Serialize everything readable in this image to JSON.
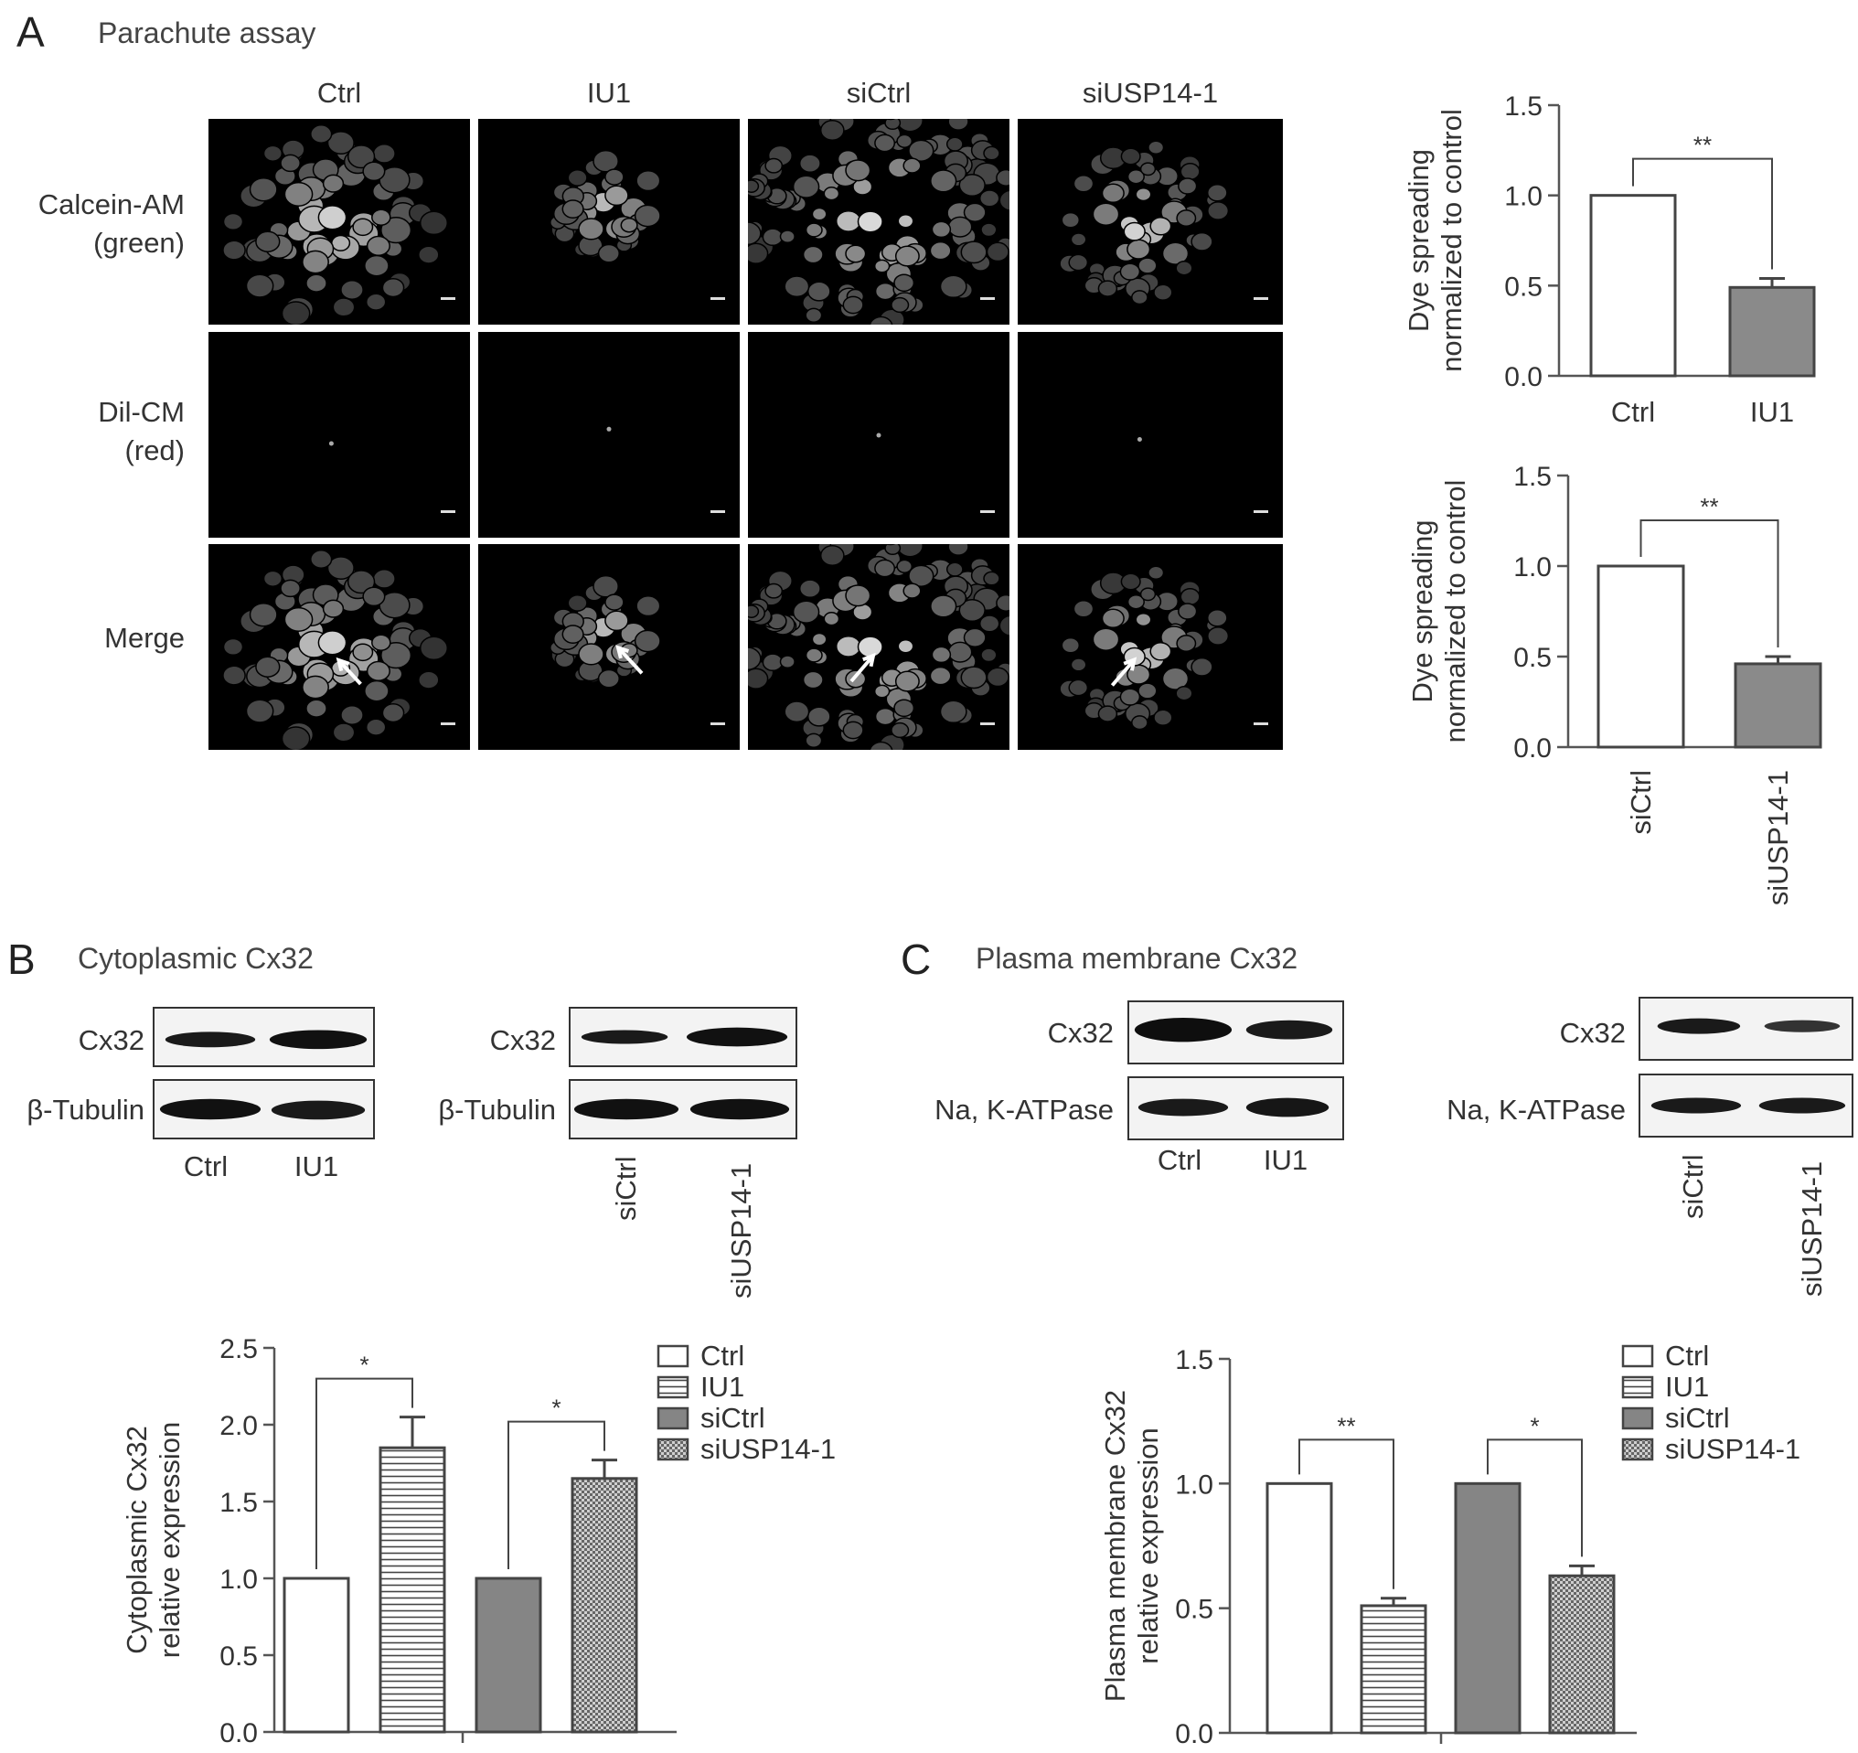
{
  "panelA": {
    "letter": "A",
    "title": "Parachute assay",
    "columns": [
      "Ctrl",
      "IU1",
      "siCtrl",
      "siUSP14-1"
    ],
    "rows": [
      {
        "line1": "Calcein-AM",
        "line2": "(green)"
      },
      {
        "line1": "Dil-CM",
        "line2": "(red)"
      },
      {
        "line1": "Merge",
        "line2": ""
      }
    ]
  },
  "panelB": {
    "letter": "B",
    "title": "Cytoplasmic Cx32",
    "blot1": {
      "bands": [
        "Cx32",
        "β-Tubulin"
      ],
      "lanes": [
        "Ctrl",
        "IU1"
      ]
    },
    "blot2": {
      "bands": [
        "Cx32",
        "β-Tubulin"
      ],
      "lanes": [
        "siCtrl",
        "siUSP14-1"
      ]
    }
  },
  "panelC": {
    "letter": "C",
    "title": "Plasma membrane Cx32",
    "blot1": {
      "bands": [
        "Cx32",
        "Na, K-ATPase"
      ],
      "lanes": [
        "Ctrl",
        "IU1"
      ]
    },
    "blot2": {
      "bands": [
        "Cx32",
        "Na, K-ATPase"
      ],
      "lanes": [
        "siCtrl",
        "siUSP14-1"
      ]
    }
  },
  "chart_data": [
    {
      "id": "A-top",
      "type": "bar",
      "categories": [
        "Ctrl",
        "IU1"
      ],
      "values": [
        1.0,
        0.49
      ],
      "errors": [
        0,
        0.05
      ],
      "fills": [
        "#ffffff",
        "#8a8a8a"
      ],
      "ylabel_line1": "Dye spreading",
      "ylabel_line2": "normalized to control",
      "ylim": [
        0,
        1.5
      ],
      "yticks": [
        "0.0",
        "0.5",
        "1.0",
        "1.5"
      ],
      "significance": [
        {
          "from": 0,
          "to": 1,
          "label": "**"
        }
      ]
    },
    {
      "id": "A-bottom",
      "type": "bar",
      "categories": [
        "siCtrl",
        "siUSP14-1"
      ],
      "values": [
        1.0,
        0.46
      ],
      "errors": [
        0,
        0.04
      ],
      "fills": [
        "#ffffff",
        "#8a8a8a"
      ],
      "ylabel_line1": "Dye spreading",
      "ylabel_line2": "normalized to control",
      "ylim": [
        0,
        1.5
      ],
      "yticks": [
        "0.0",
        "0.5",
        "1.0",
        "1.5"
      ],
      "significance": [
        {
          "from": 0,
          "to": 1,
          "label": "**"
        }
      ]
    },
    {
      "id": "B-chart",
      "type": "bar",
      "categories": [
        "Ctrl",
        "IU1",
        "siCtrl",
        "siUSP14-1"
      ],
      "values": [
        1.0,
        1.85,
        1.0,
        1.65
      ],
      "errors": [
        0,
        0.2,
        0,
        0.12
      ],
      "patterns": [
        "white",
        "hlines",
        "gray",
        "checker"
      ],
      "ylabel_line1": "Cytoplasmic Cx32",
      "ylabel_line2": "relative expression",
      "ylim": [
        0,
        2.5
      ],
      "yticks": [
        "0.0",
        "0.5",
        "1.0",
        "1.5",
        "2.0",
        "2.5"
      ],
      "legend": [
        "Ctrl",
        "IU1",
        "siCtrl",
        "siUSP14-1"
      ],
      "significance": [
        {
          "from": 0,
          "to": 1,
          "label": "*"
        },
        {
          "from": 2,
          "to": 3,
          "label": "*"
        }
      ]
    },
    {
      "id": "C-chart",
      "type": "bar",
      "categories": [
        "Ctrl",
        "IU1",
        "siCtrl",
        "siUSP14-1"
      ],
      "values": [
        1.0,
        0.51,
        1.0,
        0.63
      ],
      "errors": [
        0,
        0.03,
        0,
        0.04
      ],
      "patterns": [
        "white",
        "hlines",
        "gray",
        "checker"
      ],
      "ylabel_line1": "Plasma membrane Cx32",
      "ylabel_line2": "relative expression",
      "ylim": [
        0,
        1.5
      ],
      "yticks": [
        "0.0",
        "0.5",
        "1.0",
        "1.5"
      ],
      "legend": [
        "Ctrl",
        "IU1",
        "siCtrl",
        "siUSP14-1"
      ],
      "significance": [
        {
          "from": 0,
          "to": 1,
          "label": "**"
        },
        {
          "from": 2,
          "to": 3,
          "label": "*"
        }
      ]
    }
  ]
}
